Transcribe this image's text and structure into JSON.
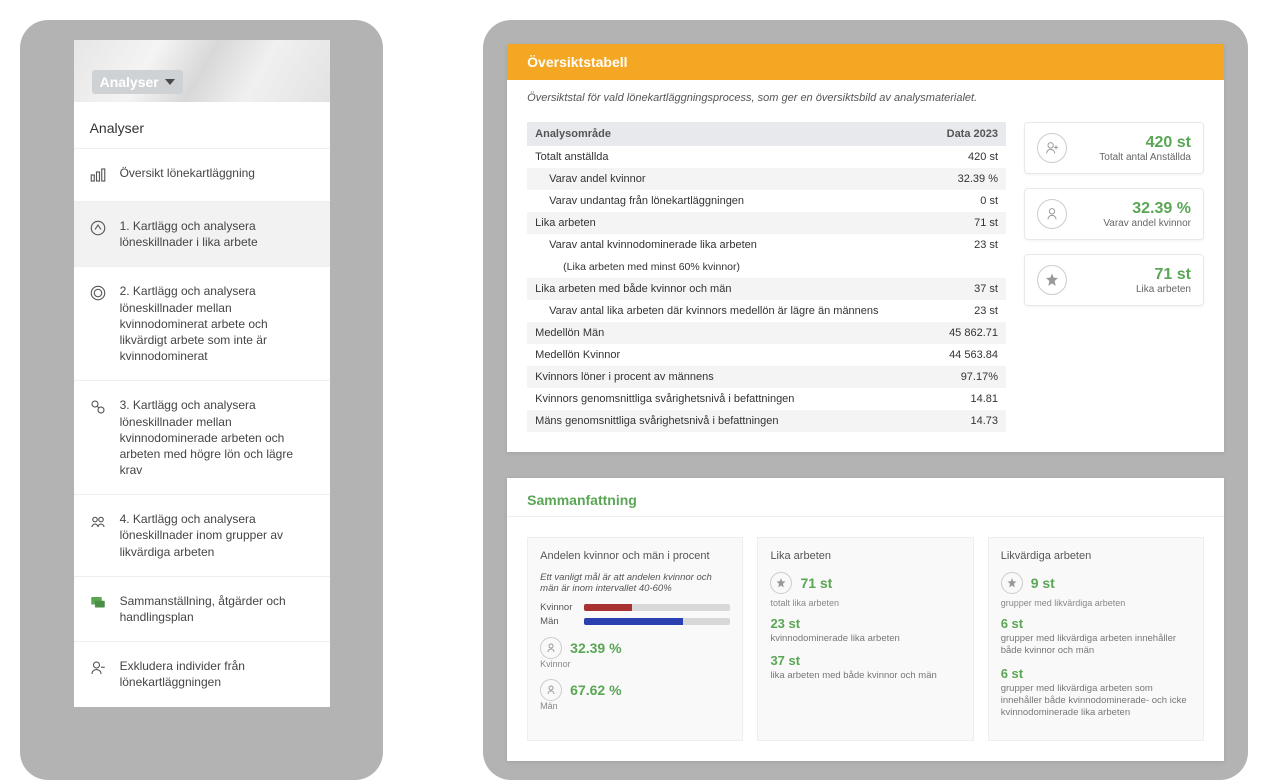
{
  "sidebar": {
    "dropdown_label": "Analyser",
    "title": "Analyser",
    "items": [
      {
        "label": "Översikt lönekartläggning"
      },
      {
        "label": "1. Kartlägg och analysera löneskillnader i lika arbete"
      },
      {
        "label": "2. Kartlägg och analysera löneskillnader mellan kvinnodominerat arbete och likvärdigt arbete som inte är kvinnodominerat"
      },
      {
        "label": "3. Kartlägg och analysera löneskillnader mellan kvinnodominerade arbeten och arbeten med högre lön och lägre krav"
      },
      {
        "label": "4. Kartlägg och analysera löneskillnader inom grupper av likvärdiga arbeten"
      },
      {
        "label": "Sammanställning, åtgärder och handlingsplan"
      },
      {
        "label": "Exkludera individer från lönekartläggningen"
      }
    ]
  },
  "overview": {
    "title": "Översiktstabell",
    "subtitle": "Översiktstal för vald lönekartläggningsprocess, som ger en översiktsbild av analysmaterialet.",
    "col_area": "Analysområde",
    "col_data": "Data 2023",
    "rows": [
      {
        "label": "Totalt anställda",
        "value": "420 st",
        "indent": 0,
        "alt": false
      },
      {
        "label": "Varav andel kvinnor",
        "value": "32.39 %",
        "indent": 1,
        "alt": true
      },
      {
        "label": "Varav undantag från lönekartläggningen",
        "value": "0 st",
        "indent": 1,
        "alt": false
      },
      {
        "label": "Lika arbeten",
        "value": "71 st",
        "indent": 0,
        "alt": true
      },
      {
        "label": "Varav antal kvinnodominerade lika arbeten",
        "value": "23 st",
        "indent": 1,
        "alt": false
      },
      {
        "label": "(Lika arbeten med minst 60% kvinnor)",
        "value": "",
        "indent": 2,
        "alt": false
      },
      {
        "label": "Lika arbeten med både kvinnor och män",
        "value": "37 st",
        "indent": 0,
        "alt": true
      },
      {
        "label": "Varav antal lika arbeten där kvinnors medellön är lägre än männens",
        "value": "23 st",
        "indent": 1,
        "alt": false
      },
      {
        "label": "Medellön Män",
        "value": "45 862.71",
        "indent": 0,
        "alt": true
      },
      {
        "label": "Medellön Kvinnor",
        "value": "44 563.84",
        "indent": 0,
        "alt": false
      },
      {
        "label": "Kvinnors löner i procent av männens",
        "value": "97.17%",
        "indent": 0,
        "alt": true
      },
      {
        "label": "Kvinnors genomsnittliga svårighetsnivå i befattningen",
        "value": "14.81",
        "indent": 0,
        "alt": false
      },
      {
        "label": "Mäns genomsnittliga svårighetsnivå i befattningen",
        "value": "14.73",
        "indent": 0,
        "alt": true
      }
    ],
    "cards": [
      {
        "value": "420 st",
        "label": "Totalt antal Anställda",
        "icon": "person-plus-icon"
      },
      {
        "value": "32.39 %",
        "label": "Varav andel kvinnor",
        "icon": "person-icon"
      },
      {
        "value": "71 st",
        "label": "Lika arbeten",
        "icon": "star-icon"
      }
    ]
  },
  "summary": {
    "title": "Sammanfattning",
    "col1": {
      "heading": "Andelen kvinnor och män i procent",
      "note": "Ett vanligt mål är att andelen kvinnor och män är inom intervallet 40-60%",
      "bars": {
        "kvinnor_label": "Kvinnor",
        "kvinnor_pct": 32.39,
        "kvinnor_color": "#a83232",
        "man_label": "Män",
        "man_pct": 67.62,
        "man_color": "#2a3fb0"
      },
      "w_value": "32.39 %",
      "w_label": "Kvinnor",
      "m_value": "67.62 %",
      "m_label": "Män"
    },
    "col2": {
      "heading": "Lika arbeten",
      "top_value": "71 st",
      "top_label": "totalt lika arbeten",
      "mid_value": "23 st",
      "mid_label": "kvinnodominerade lika arbeten",
      "bot_value": "37 st",
      "bot_label": "lika arbeten med både kvinnor och män"
    },
    "col3": {
      "heading": "Likvärdiga arbeten",
      "top_value": "9 st",
      "top_label": "grupper med likvärdiga arbeten",
      "mid_value": "6 st",
      "mid_label": "grupper med likvärdiga arbeten innehåller både kvinnor och män",
      "bot_value": "6 st",
      "bot_label": "grupper med likvärdiga arbeten som innehåller både kvinnodominerade- och icke kvinnodominerade lika arbeten"
    }
  }
}
